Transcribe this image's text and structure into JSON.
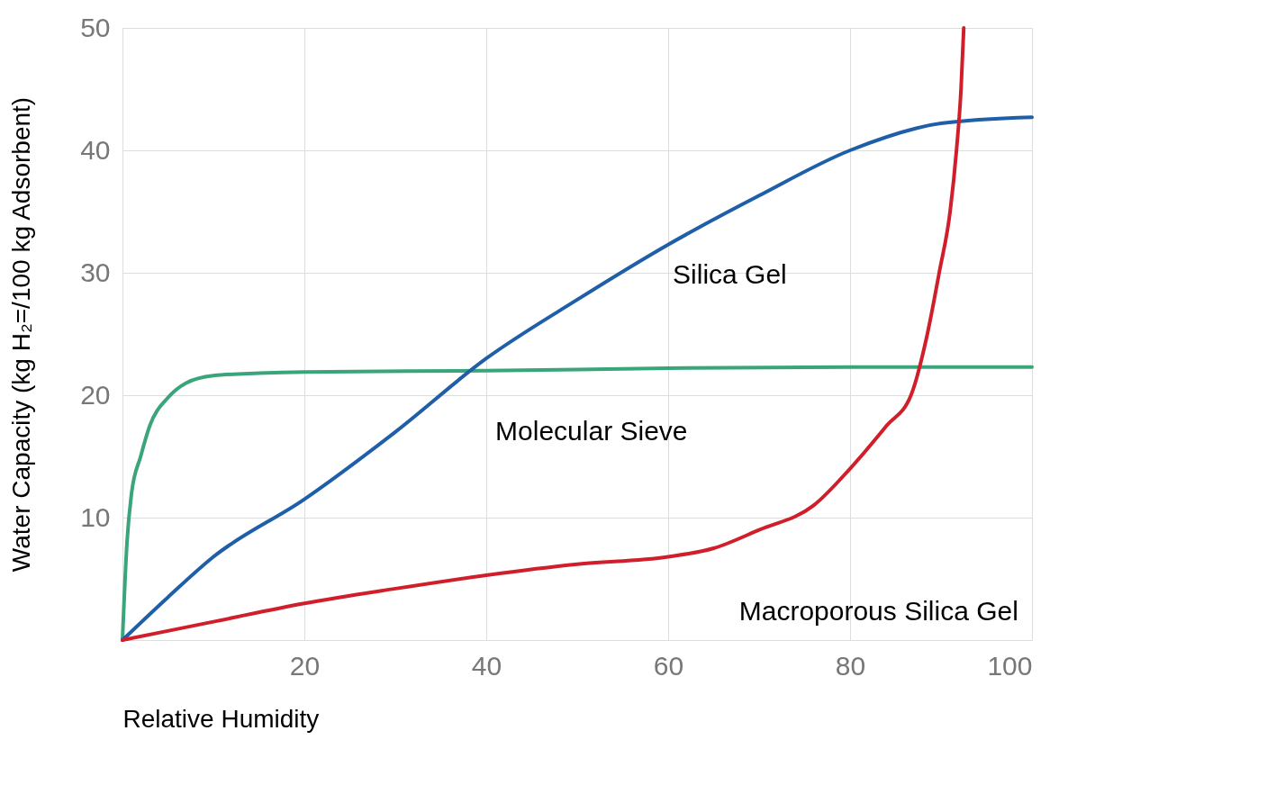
{
  "chart_data": {
    "type": "line",
    "xlabel": "Relative Humidity",
    "ylabel": "Water Capacity (kg H₂=/100 kg Adsorbent)",
    "xlim": [
      0,
      100
    ],
    "ylim": [
      0,
      50
    ],
    "xticks": [
      20,
      40,
      60,
      80,
      100
    ],
    "yticks": [
      10,
      20,
      30,
      40,
      50
    ],
    "grid": true,
    "legend": false,
    "line_style": "solid",
    "marker": "none",
    "series": [
      {
        "name": "Molecular Sieve",
        "color": "#3aa57a",
        "x": [
          0,
          0.5,
          1,
          2,
          3,
          5,
          7,
          10,
          15,
          20,
          40,
          60,
          80,
          100
        ],
        "values": [
          0,
          8,
          12,
          15,
          17.5,
          19.8,
          21,
          21.6,
          21.8,
          21.9,
          22,
          22.2,
          22.3,
          22.3
        ]
      },
      {
        "name": "Silica Gel",
        "color": "#1f5fa8",
        "x": [
          0,
          5,
          10,
          20,
          30,
          40,
          50,
          60,
          70,
          80,
          90,
          100
        ],
        "values": [
          0,
          3.5,
          6.8,
          11.5,
          17,
          23,
          27.8,
          32.3,
          36.3,
          40,
          42.2,
          42.7
        ]
      },
      {
        "name": "Macroporous Silica Gel",
        "color": "#d01f2a",
        "x": [
          0,
          10,
          20,
          30,
          40,
          50,
          60,
          65,
          70,
          76,
          80,
          84,
          86.7,
          88.5,
          89.8,
          91,
          91.7,
          92.2,
          92.5
        ],
        "values": [
          0,
          1.5,
          3,
          4.2,
          5.3,
          6.2,
          6.8,
          7.5,
          9,
          11,
          14,
          17.5,
          20,
          25,
          30,
          35,
          40,
          45,
          50
        ]
      }
    ]
  }
}
